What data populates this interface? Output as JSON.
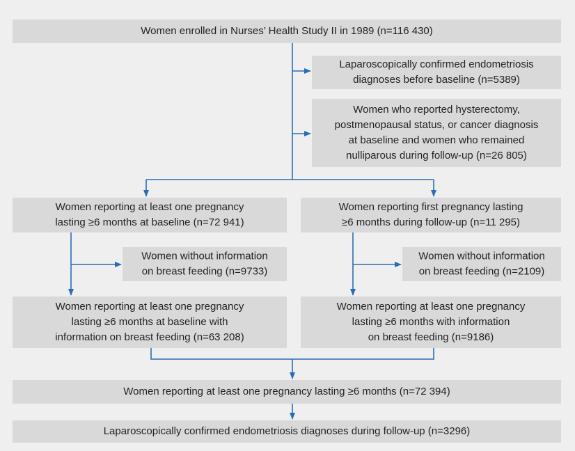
{
  "nodes": [
    {
      "lines": [
        "Women enrolled in Nurses’ Health Study II in 1989 (n=116 430)"
      ]
    },
    {
      "lines": [
        "Laparoscopically confirmed endometriosis",
        "diagnoses before baseline (n=5389)"
      ]
    },
    {
      "lines": [
        "Women who reported hysterectomy,",
        "postmenopausal status, or cancer diagnosis",
        "at baseline and women who remained",
        "nulliparous during follow-up (n=26 805)"
      ]
    },
    {
      "lines": [
        "Women reporting at least one pregnancy",
        "lasting ≥6 months at baseline (n=72 941)"
      ]
    },
    {
      "lines": [
        "Women reporting first pregnancy lasting",
        "≥6 months during follow-up (n=11 295)"
      ]
    },
    {
      "lines": [
        "Women without information",
        "on breast feeding (n=9733)"
      ]
    },
    {
      "lines": [
        "Women without information",
        "on breast feeding (n=2109)"
      ]
    },
    {
      "lines": [
        "Women reporting at least one pregnancy",
        "lasting ≥6 months at baseline with",
        "information on breast feeding (n=63 208)"
      ]
    },
    {
      "lines": [
        "Women reporting at least one pregnancy",
        "lasting ≥6 months with information",
        "on breast feeding (n=9186)"
      ]
    },
    {
      "lines": [
        "Women reporting at least one pregnancy lasting ≥6 months (n=72 394)"
      ]
    },
    {
      "lines": [
        "Laparoscopically confirmed endometriosis diagnoses during follow-up (n=3296)"
      ]
    }
  ]
}
